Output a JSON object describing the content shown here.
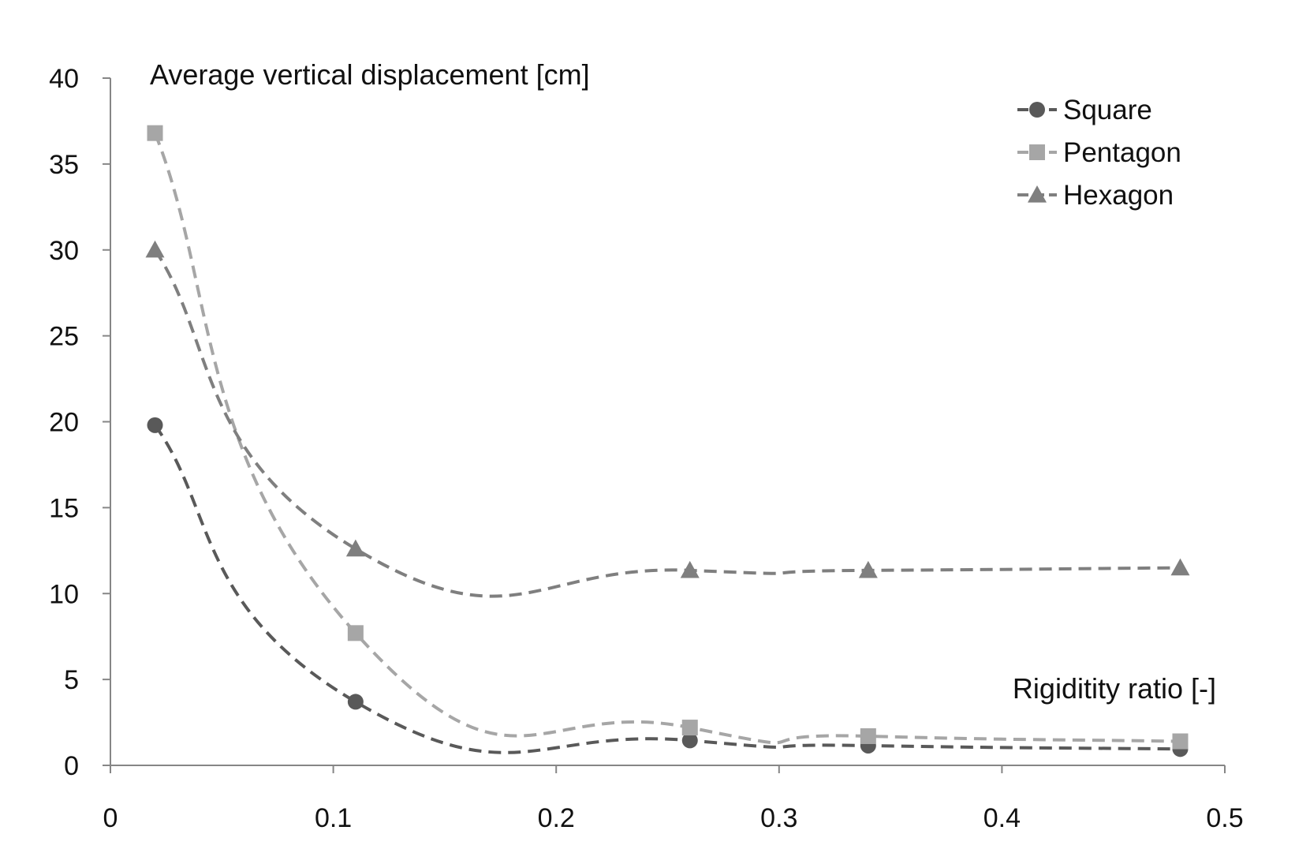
{
  "chart_data": {
    "type": "line",
    "title": "",
    "xlabel": "Rigiditity ratio [-]",
    "ylabel": "Average vertical displacement [cm]",
    "xlim": [
      0,
      0.5
    ],
    "ylim": [
      0,
      40
    ],
    "x_ticks": [
      0,
      0.1,
      0.2,
      0.3,
      0.4,
      0.5
    ],
    "x_tick_labels": [
      "0",
      "0.1",
      "0.2",
      "0.3",
      "0.4",
      "0.5"
    ],
    "y_ticks": [
      0,
      5,
      10,
      15,
      20,
      25,
      30,
      35,
      40
    ],
    "y_tick_labels": [
      "0",
      "5",
      "10",
      "15",
      "20",
      "25",
      "30",
      "35",
      "40"
    ],
    "grid": false,
    "legend_position": "top-right",
    "line_style": "dashed smoothed",
    "series": [
      {
        "name": "Square",
        "marker": "circle",
        "color": "#595959",
        "x": [
          0.02,
          0.11,
          0.26,
          0.34,
          0.48
        ],
        "y": [
          19.8,
          3.7,
          1.45,
          1.15,
          0.95
        ]
      },
      {
        "name": "Pentagon",
        "marker": "square",
        "color": "#a6a6a6",
        "x": [
          0.02,
          0.11,
          0.26,
          0.34,
          0.48
        ],
        "y": [
          36.8,
          7.7,
          2.2,
          1.7,
          1.4
        ]
      },
      {
        "name": "Hexagon",
        "marker": "triangle",
        "color": "#7f7f7f",
        "x": [
          0.02,
          0.11,
          0.26,
          0.34,
          0.48
        ],
        "y": [
          30.0,
          12.6,
          11.35,
          11.35,
          11.5
        ]
      }
    ]
  }
}
